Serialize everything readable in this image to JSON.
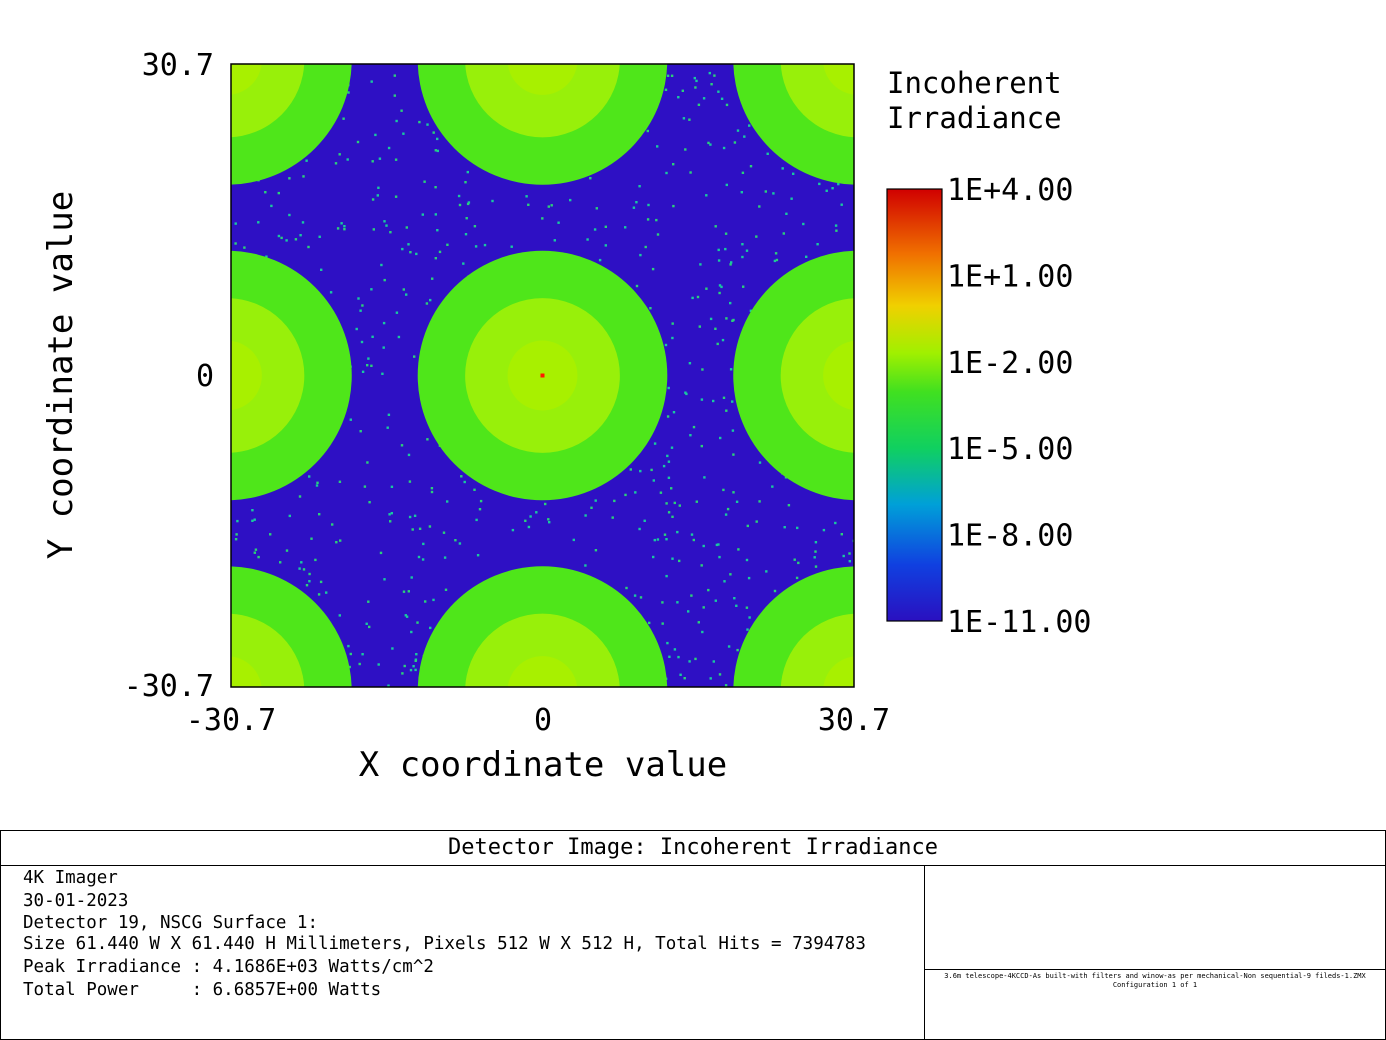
{
  "chart_data": {
    "type": "heatmap",
    "title": "Detector Image: Incoherent Irradiance",
    "xlabel": "X coordinate value",
    "ylabel": "Y coordinate value",
    "xlim": [
      -30.7,
      30.7
    ],
    "ylim": [
      -30.7,
      30.7
    ],
    "x_ticks": [
      "-30.7",
      "0",
      "30.7"
    ],
    "y_ticks": [
      "30.7",
      "0",
      "-30.7"
    ],
    "scale": "log10",
    "background_level_log10": -10.3,
    "spots": [
      {
        "x": 0.0,
        "y": 0.0,
        "radius": 12.3,
        "level_log10": -3.0
      },
      {
        "x": 31.1,
        "y": 0.0,
        "radius": 12.3,
        "level_log10": -3.0
      },
      {
        "x": -31.1,
        "y": 0.0,
        "radius": 12.3,
        "level_log10": -3.0
      },
      {
        "x": 0.0,
        "y": 31.1,
        "radius": 12.3,
        "level_log10": -3.0
      },
      {
        "x": 0.0,
        "y": -31.1,
        "radius": 12.3,
        "level_log10": -3.0
      },
      {
        "x": 31.1,
        "y": 31.1,
        "radius": 12.3,
        "level_log10": -3.0
      },
      {
        "x": -31.1,
        "y": 31.1,
        "radius": 12.3,
        "level_log10": -3.0
      },
      {
        "x": 31.1,
        "y": -31.1,
        "radius": 12.3,
        "level_log10": -3.0
      },
      {
        "x": -31.1,
        "y": -31.1,
        "radius": 12.3,
        "level_log10": -3.0
      }
    ],
    "colorbar": {
      "title_lines": [
        "Incoherent",
        "Irradiance"
      ],
      "labels": [
        "1E+4.00",
        "1E+1.00",
        "1E-2.00",
        "1E-5.00",
        "1E-8.00",
        "1E-11.00"
      ],
      "min_log10": -11,
      "max_log10": 4
    },
    "colors": {
      "background": "#2e10c4",
      "speckle": "#19c8a0",
      "spot_outer": "#4fe61a",
      "spot_inner": "#98f00a",
      "peak": "#ff1a00"
    }
  },
  "info": {
    "title": "Detector Image: Incoherent Irradiance",
    "lines": [
      "4K Imager",
      "30-01-2023",
      "Detector 19, NSCG Surface 1:",
      "Size 61.440 W X 61.440 H Millimeters, Pixels 512 W X 512 H, Total Hits = 7394783",
      "Peak Irradiance : 4.1686E+03 Watts/cm^2",
      "Total Power     : 6.6857E+00 Watts"
    ],
    "file_lines": [
      "3.6m telescope-4KCCD-As built-with filters and winow-as per mechanical-Non sequential-9 fileds-1.ZMX",
      "Configuration 1 of 1"
    ]
  }
}
